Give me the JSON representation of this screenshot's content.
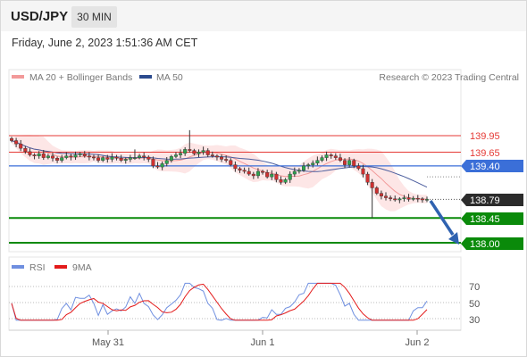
{
  "header": {
    "symbol": "USD/JPY",
    "timeframe": "30 MIN",
    "datetime": "Friday, June 2, 2023 1:51:36 AM CET"
  },
  "legend": {
    "ma20_bb": "MA 20 + Bollinger Bands",
    "ma50": "MA 50",
    "copyright": "Research © 2023 Trading Central",
    "rsi": "RSI",
    "rsi_ma": "9MA"
  },
  "colors": {
    "resistance": "#e53935",
    "pivot": "#3b6fd8",
    "support": "#0a8a0a",
    "last_price_tag": "#2b2b2b",
    "arrow": "#2f62b0",
    "bollinger_fill": "#fde3e3",
    "ma50": "#4c5e9e"
  },
  "levels": {
    "r2": "139.95",
    "r1": "139.65",
    "pivot": "139.40",
    "last": "138.79",
    "s1": "138.45",
    "s2": "138.00"
  },
  "x_axis": {
    "ticks": [
      "May 31",
      "Jun 1",
      "Jun 2"
    ]
  },
  "rsi_axis": {
    "ticks": [
      "70",
      "50",
      "30"
    ]
  },
  "chart_data": {
    "type": "candlestick",
    "instrument": "USD/JPY",
    "interval": "30 MIN",
    "x_ticks": [
      "May 31",
      "Jun 1",
      "Jun 2"
    ],
    "price_range": [
      138.0,
      140.15
    ],
    "horizontal_levels": [
      139.95,
      139.65,
      139.4,
      138.45,
      138.0
    ],
    "last_price": 138.79,
    "close": [
      139.86,
      139.8,
      139.72,
      139.66,
      139.6,
      139.58,
      139.62,
      139.55,
      139.58,
      139.54,
      139.5,
      139.55,
      139.58,
      139.56,
      139.6,
      139.62,
      139.58,
      139.56,
      139.55,
      139.5,
      139.55,
      139.52,
      139.56,
      139.54,
      139.5,
      139.52,
      139.55,
      139.55,
      139.58,
      139.56,
      139.52,
      139.4,
      139.38,
      139.44,
      139.5,
      139.57,
      139.6,
      139.63,
      139.7,
      139.68,
      139.62,
      139.65,
      139.68,
      139.6,
      139.58,
      139.56,
      139.52,
      139.5,
      139.42,
      139.35,
      139.32,
      139.3,
      139.25,
      139.22,
      139.3,
      139.28,
      139.2,
      139.25,
      139.15,
      139.1,
      139.15,
      139.25,
      139.3,
      139.32,
      139.4,
      139.42,
      139.45,
      139.5,
      139.55,
      139.6,
      139.58,
      139.55,
      139.5,
      139.42,
      139.5,
      139.4,
      139.35,
      139.25,
      139.1,
      139.0,
      138.9,
      138.85,
      138.82,
      138.8,
      138.78,
      138.8,
      138.82,
      138.79,
      138.81,
      138.8,
      138.78,
      138.79
    ]
  }
}
